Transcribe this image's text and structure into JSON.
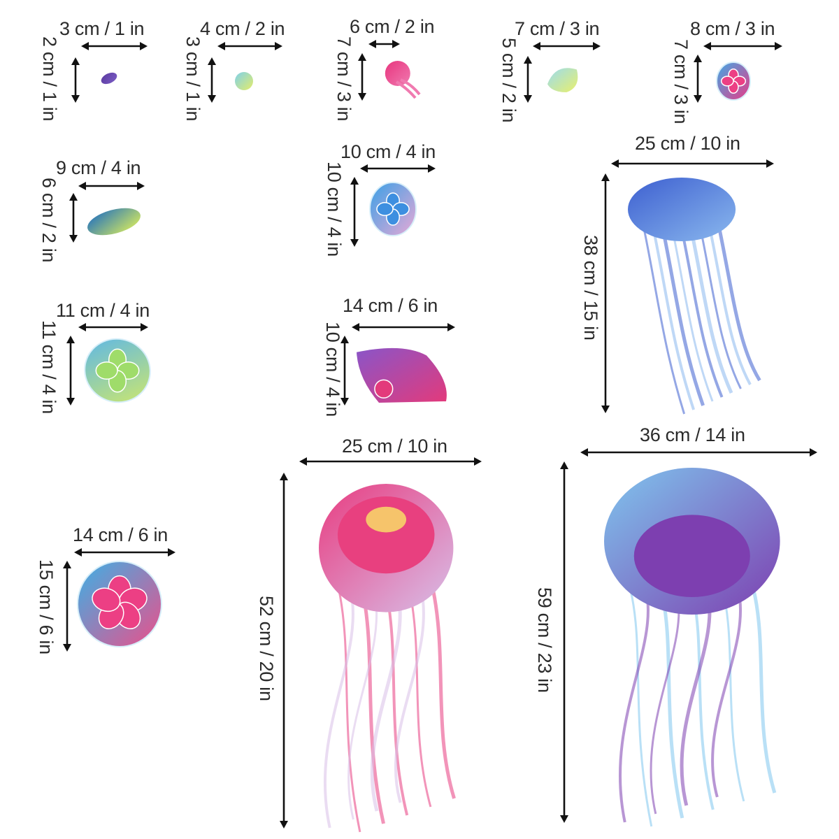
{
  "diagram": {
    "subject": "Jellyfish wall decals size chart",
    "arrow_color": "#111111",
    "text_color": "#2b2b2b",
    "items": [
      {
        "id": "j1",
        "width": "3 cm / 1 in",
        "height": "2 cm / 1 in",
        "colors": [
          "#5b3aa0",
          "#7a5cc4"
        ],
        "shape": "gem",
        "wl": [
          85,
          28
        ],
        "hl": [
          84,
          52
        ],
        "ha": [
          116,
          66,
          210
        ],
        "va": [
          108,
          82,
          146
        ],
        "art": [
          143,
          102,
          26,
          20
        ]
      },
      {
        "id": "j2",
        "width": "4 cm / 2 in",
        "height": "3 cm / 1 in",
        "colors": [
          "#7fd1ea",
          "#e4ec6a"
        ],
        "shape": "disc",
        "wl": [
          286,
          28
        ],
        "hl": [
          289,
          52
        ],
        "ha": [
          311,
          66,
          403
        ],
        "va": [
          303,
          82,
          146
        ],
        "art": [
          333,
          101,
          32,
          30
        ]
      },
      {
        "id": "j3",
        "width": "6 cm / 2 in",
        "height": "7 cm / 3 in",
        "colors": [
          "#e8357e",
          "#f07ab0"
        ],
        "shape": "pinkjelly",
        "wl": [
          500,
          25
        ],
        "hl": [
          505,
          52
        ],
        "ha": [
          527,
          63,
          571
        ],
        "va": [
          518,
          76,
          143
        ],
        "art": [
          546,
          84,
          60,
          60
        ]
      },
      {
        "id": "j4",
        "width": "7 cm / 3 in",
        "height": "5 cm / 2 in",
        "colors": [
          "#8fd7ee",
          "#e6ee5c"
        ],
        "shape": "bell",
        "wl": [
          736,
          28
        ],
        "hl": [
          741,
          54
        ],
        "ha": [
          762,
          66,
          858
        ],
        "va": [
          755,
          80,
          146
        ],
        "art": [
          779,
          88,
          52,
          46
        ]
      },
      {
        "id": "j5",
        "width": "8 cm / 3 in",
        "height": "7 cm / 3 in",
        "colors": [
          "#3fa9e6",
          "#ea3a86"
        ],
        "shape": "ovalflower",
        "wl": [
          987,
          28
        ],
        "hl": [
          987,
          56
        ],
        "ha": [
          1006,
          66,
          1118
        ],
        "va": [
          998,
          78,
          146
        ],
        "art": [
          1022,
          86,
          54,
          60
        ]
      },
      {
        "id": "j6",
        "width": "9 cm / 4 in",
        "height": "6 cm / 2 in",
        "colors": [
          "#1f6fc0",
          "#dcee5a"
        ],
        "shape": "lens",
        "wl": [
          80,
          227
        ],
        "hl": [
          83,
          254
        ],
        "ha": [
          112,
          266,
          206
        ],
        "va": [
          105,
          276,
          346
        ],
        "art": [
          122,
          296,
          82,
          42
        ]
      },
      {
        "id": "j7",
        "width": "10 cm / 4 in",
        "height": "10 cm / 4 in",
        "colors": [
          "#3aa0e6",
          "#e8a9d6"
        ],
        "shape": "roundflower",
        "wl": [
          487,
          204
        ],
        "hl": [
          491,
          231
        ],
        "ha": [
          515,
          241,
          622
        ],
        "va": [
          507,
          253,
          352
        ],
        "art": [
          526,
          258,
          72,
          82
        ]
      },
      {
        "id": "j8",
        "width": "11 cm / 4 in",
        "height": "11 cm / 4 in",
        "colors": [
          "#5bb6ea",
          "#cfe86a"
        ],
        "shape": "clover",
        "wl": [
          80,
          431
        ],
        "hl": [
          83,
          458
        ],
        "ha": [
          112,
          468,
          211
        ],
        "va": [
          101,
          480,
          579
        ],
        "art": [
          118,
          482,
          100,
          96
        ]
      },
      {
        "id": "j9",
        "width": "14 cm / 6 in",
        "height": "10 cm / 4 in",
        "colors": [
          "#8a55c8",
          "#e33a7b"
        ],
        "shape": "fan",
        "wl": [
          490,
          424
        ],
        "hl": [
          489,
          460
        ],
        "ha": [
          503,
          468,
          650
        ],
        "va": [
          493,
          480,
          579
        ],
        "art": [
          508,
          490,
          136,
          92
        ]
      },
      {
        "id": "j10",
        "width": "14 cm / 6 in",
        "height": "15 cm / 6 in",
        "colors": [
          "#3bb1e6",
          "#ec4f8a"
        ],
        "shape": "bigflower",
        "wl": [
          104,
          752
        ],
        "hl": [
          79,
          800
        ],
        "ha": [
          106,
          790,
          250
        ],
        "va": [
          96,
          802,
          931
        ],
        "art": [
          108,
          800,
          126,
          128
        ]
      },
      {
        "id": "j11",
        "width": "25 cm / 10 in",
        "height": "38 cm / 15 in",
        "colors": [
          "#3d5fd0",
          "#8ab8ee"
        ],
        "shape": "bluejelly",
        "wl": [
          908,
          192
        ],
        "hl": [
          858,
          336
        ],
        "ha": [
          874,
          234,
          1106
        ],
        "va": [
          866,
          248,
          590
        ],
        "art": [
          892,
          250,
          230,
          350
        ]
      },
      {
        "id": "j12",
        "width": "25 cm / 10 in",
        "height": "52 cm / 20 in",
        "colors": [
          "#e83c80",
          "#d8bfe8"
        ],
        "shape": "pinkbig",
        "wl": [
          489,
          625
        ],
        "hl": [
          394,
          852
        ],
        "ha": [
          428,
          660,
          688
        ],
        "va": [
          406,
          676,
          1184
        ],
        "art": [
          430,
          688,
          260,
          510
        ]
      },
      {
        "id": "j13",
        "width": "36 cm / 14 in",
        "height": "59 cm / 23 in",
        "colors": [
          "#7fc6ee",
          "#7d3fb0"
        ],
        "shape": "purplebig",
        "wl": [
          915,
          609
        ],
        "hl": [
          792,
          840
        ],
        "ha": [
          830,
          647,
          1168
        ],
        "va": [
          807,
          660,
          1176
        ],
        "art": [
          830,
          665,
          340,
          525
        ]
      }
    ]
  }
}
